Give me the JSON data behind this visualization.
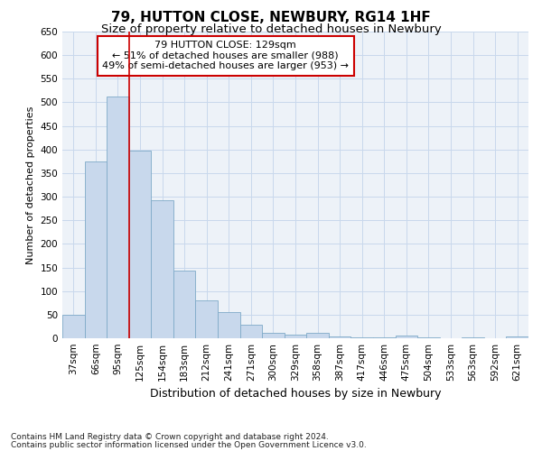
{
  "title1": "79, HUTTON CLOSE, NEWBURY, RG14 1HF",
  "title2": "Size of property relative to detached houses in Newbury",
  "xlabel": "Distribution of detached houses by size in Newbury",
  "ylabel": "Number of detached properties",
  "footnote1": "Contains HM Land Registry data © Crown copyright and database right 2024.",
  "footnote2": "Contains public sector information licensed under the Open Government Licence v3.0.",
  "categories": [
    "37sqm",
    "66sqm",
    "95sqm",
    "125sqm",
    "154sqm",
    "183sqm",
    "212sqm",
    "241sqm",
    "271sqm",
    "300sqm",
    "329sqm",
    "358sqm",
    "387sqm",
    "417sqm",
    "446sqm",
    "475sqm",
    "504sqm",
    "533sqm",
    "563sqm",
    "592sqm",
    "621sqm"
  ],
  "values": [
    50,
    375,
    512,
    398,
    292,
    143,
    81,
    55,
    29,
    11,
    7,
    11,
    4,
    1,
    1,
    5,
    1,
    0,
    1,
    0,
    3
  ],
  "bar_color": "#c8d8ec",
  "bar_edge_color": "#7faac8",
  "bar_linewidth": 0.6,
  "vline_color": "#cc0000",
  "vline_linewidth": 1.2,
  "ylim": [
    0,
    650
  ],
  "yticks": [
    0,
    50,
    100,
    150,
    200,
    250,
    300,
    350,
    400,
    450,
    500,
    550,
    600,
    650
  ],
  "annotation_title": "79 HUTTON CLOSE: 129sqm",
  "annotation_line1": "← 51% of detached houses are smaller (988)",
  "annotation_line2": "49% of semi-detached houses are larger (953) →",
  "annotation_box_color": "#ffffff",
  "annotation_box_edge": "#cc0000",
  "grid_color": "#c8d8ec",
  "background_color": "#edf2f8",
  "title1_fontsize": 11,
  "title2_fontsize": 9.5,
  "xlabel_fontsize": 9,
  "ylabel_fontsize": 8,
  "tick_fontsize": 7.5,
  "annotation_fontsize": 8,
  "footnote_fontsize": 6.5
}
